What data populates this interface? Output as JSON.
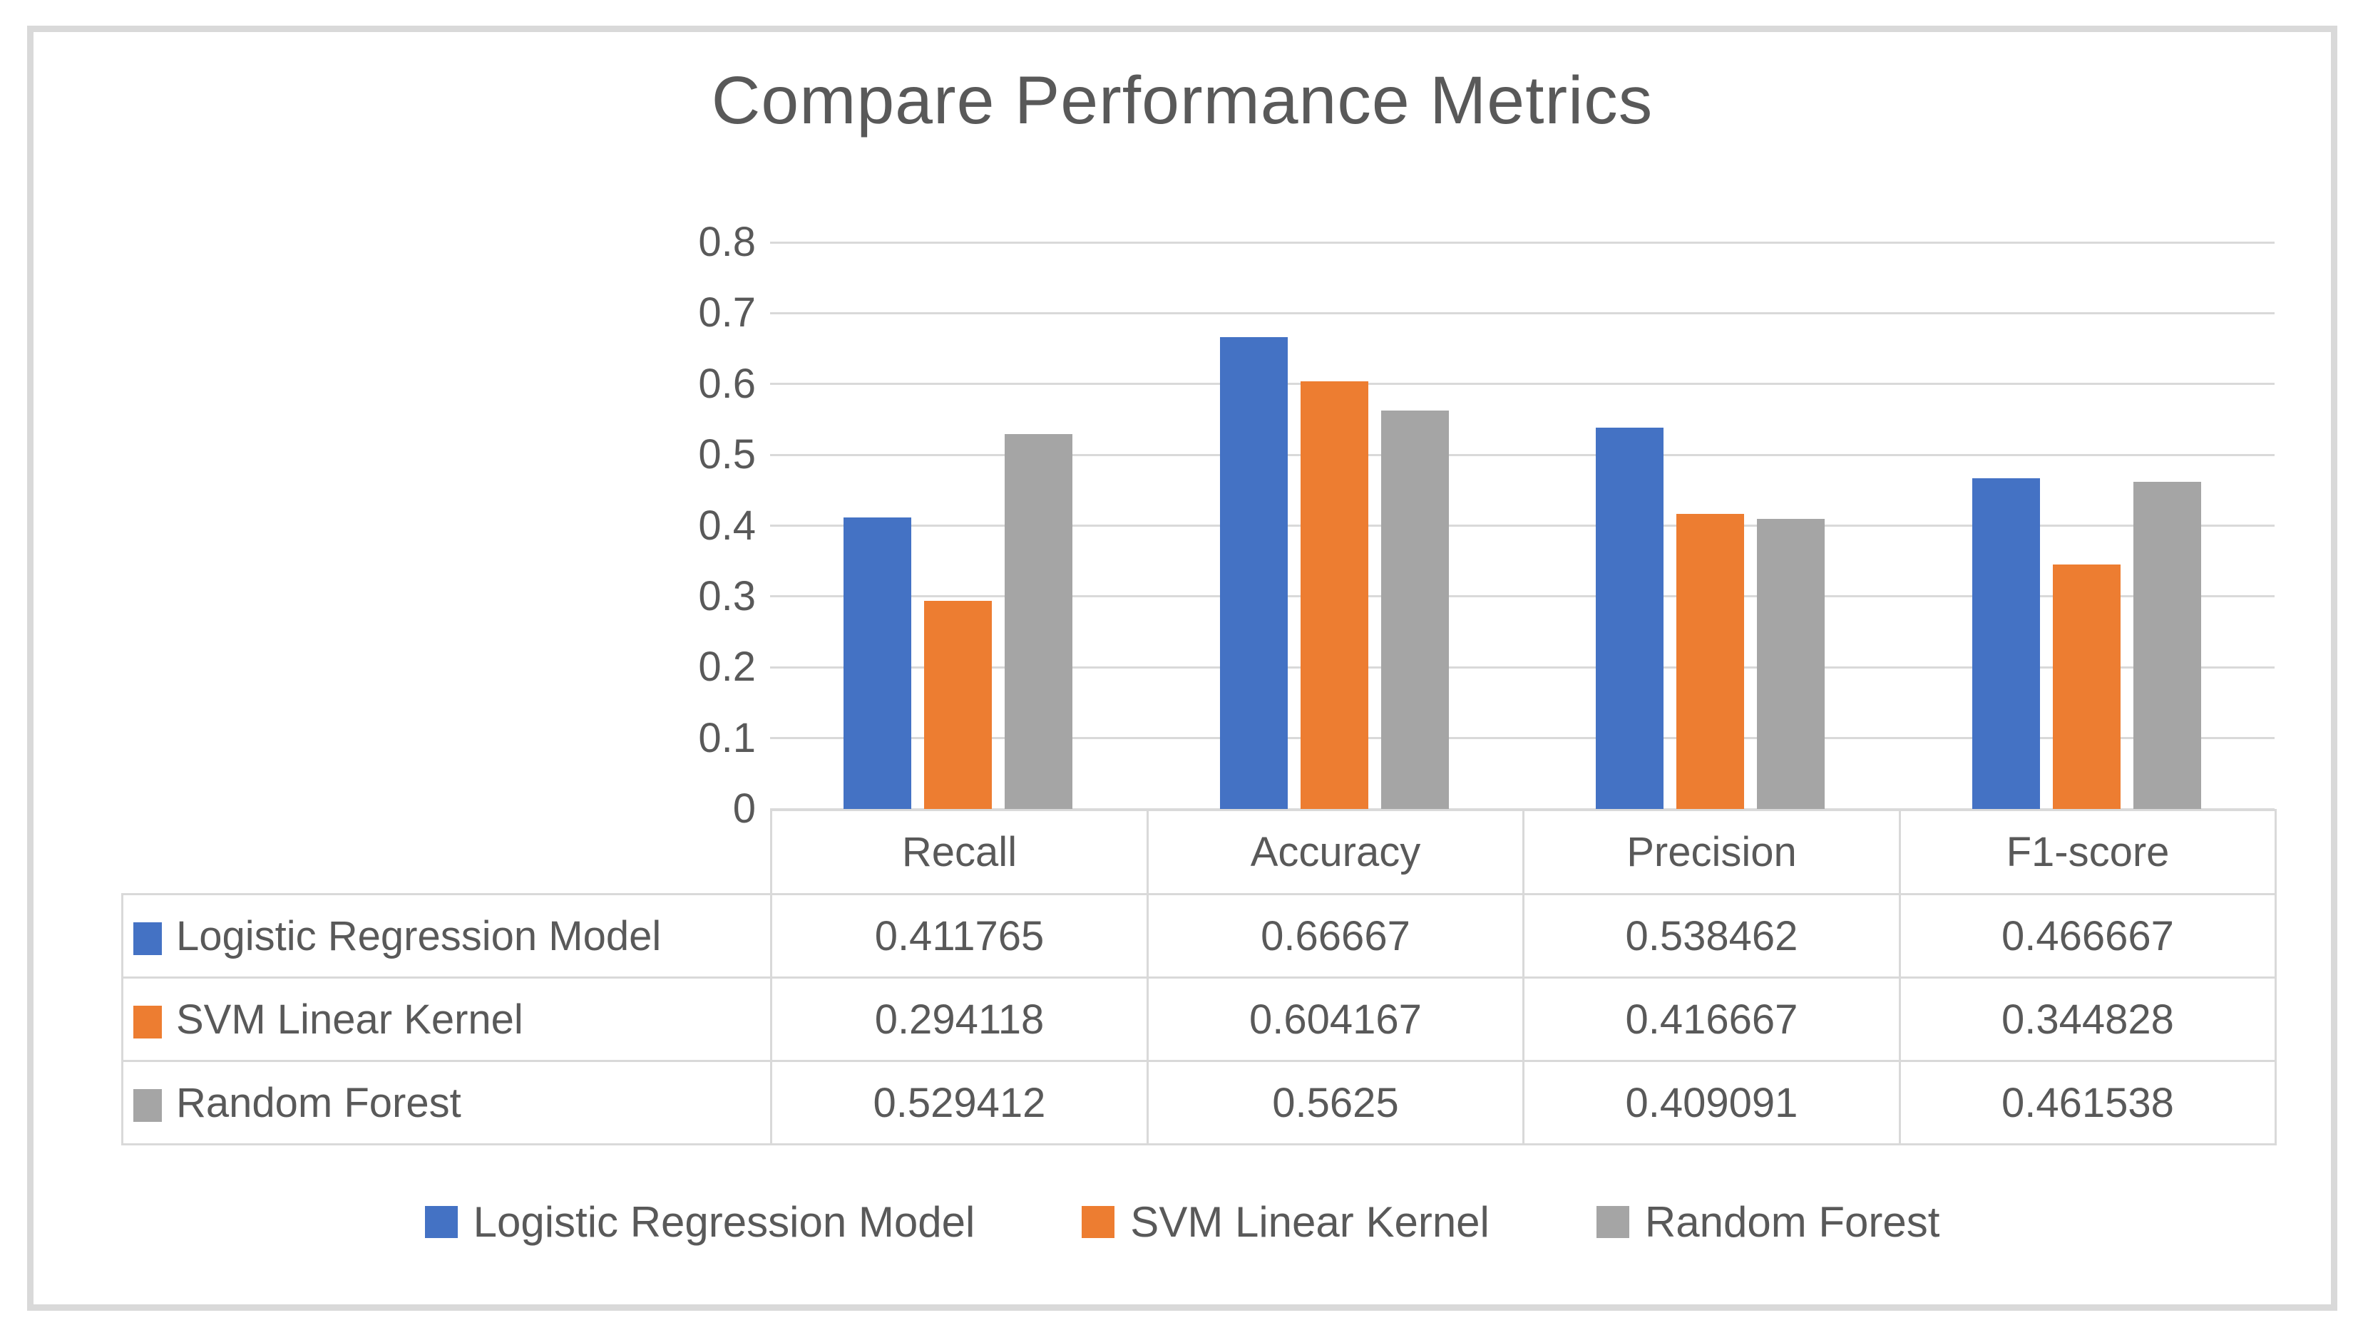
{
  "title": "Compare Performance Metrics",
  "colors": {
    "series1_blue": "#4472C4",
    "series2_orange": "#ED7D31",
    "series3_gray": "#A5A5A5",
    "gridline": "#D9D9D9",
    "figure_border": "#D9D9D9",
    "text": "#595959",
    "background": "#FFFFFF"
  },
  "chart_data": {
    "type": "bar",
    "title": "Compare Performance Metrics",
    "categories": [
      "Recall",
      "Accuracy",
      "Precision",
      "F1-score"
    ],
    "series": [
      {
        "name": "Logistic Regression Model",
        "color": "#4472C4",
        "values": [
          0.411765,
          0.66667,
          0.538462,
          0.466667
        ],
        "labels": [
          "0.411765",
          "0.66667",
          "0.538462",
          "0.466667"
        ]
      },
      {
        "name": "SVM Linear Kernel",
        "color": "#ED7D31",
        "values": [
          0.294118,
          0.604167,
          0.416667,
          0.344828
        ],
        "labels": [
          "0.294118",
          "0.604167",
          "0.416667",
          "0.344828"
        ]
      },
      {
        "name": "Random Forest",
        "color": "#A5A5A5",
        "values": [
          0.529412,
          0.5625,
          0.409091,
          0.461538
        ],
        "labels": [
          "0.529412",
          "0.5625",
          "0.409091",
          "0.461538"
        ]
      }
    ],
    "y_axis": {
      "min": 0,
      "max": 0.8,
      "step": 0.1,
      "tick_labels": [
        "0.8",
        "0.7",
        "0.6",
        "0.5",
        "0.4",
        "0.3",
        "0.2",
        "0.1",
        "0"
      ]
    },
    "grid": true,
    "legend_position": "bottom",
    "data_table_shown": true
  }
}
